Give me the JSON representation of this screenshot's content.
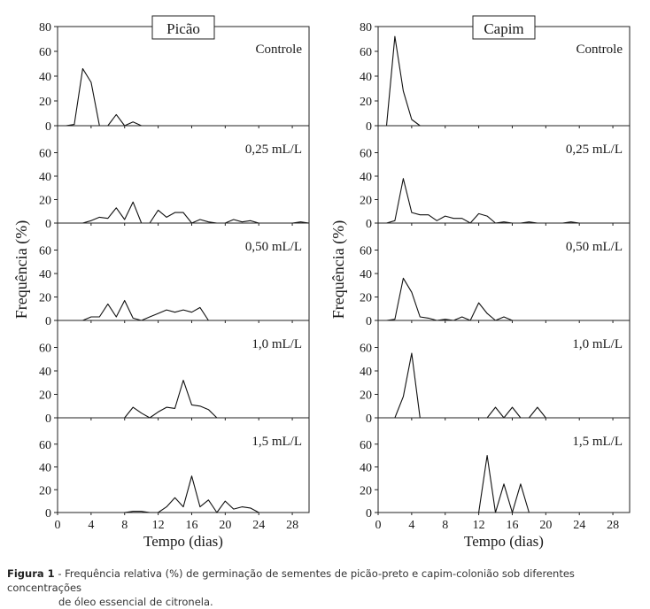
{
  "caption": {
    "label": "Figura 1",
    "line1": "- Frequência relativa (%) de germinação de sementes de picão-preto e capim-colonião sob diferentes concentrações",
    "line2": "de óleo essencial de citronela."
  },
  "chart_data": [
    {
      "type": "line",
      "title": "Picão",
      "xlabel": "Tempo (dias)",
      "ylabel": "Frequência (%)",
      "xlim": [
        0,
        30
      ],
      "xticks": [
        0,
        4,
        8,
        12,
        16,
        20,
        24,
        28
      ],
      "ylim": [
        0,
        80
      ],
      "yticks_top": [
        0,
        20,
        40,
        60,
        80
      ],
      "yticks": [
        0,
        20,
        40,
        60
      ],
      "panels": [
        {
          "label": "Controle",
          "points": [
            [
              1,
              0
            ],
            [
              2,
              1
            ],
            [
              3,
              46
            ],
            [
              4,
              35
            ],
            [
              5,
              0
            ],
            [
              6,
              0
            ],
            [
              7,
              9
            ],
            [
              8,
              0
            ],
            [
              9,
              3
            ],
            [
              10,
              0
            ]
          ]
        },
        {
          "label": "0,25 mL/L",
          "points": [
            [
              1,
              0
            ],
            [
              3,
              0
            ],
            [
              4,
              2
            ],
            [
              5,
              5
            ],
            [
              6,
              4
            ],
            [
              7,
              13
            ],
            [
              8,
              3
            ],
            [
              9,
              18
            ],
            [
              10,
              0
            ],
            [
              11,
              0
            ],
            [
              12,
              11
            ],
            [
              13,
              5
            ],
            [
              14,
              9
            ],
            [
              15,
              9
            ],
            [
              16,
              0
            ],
            [
              17,
              3
            ],
            [
              18,
              1
            ],
            [
              19,
              0
            ],
            [
              20,
              0
            ],
            [
              21,
              3
            ],
            [
              22,
              1
            ],
            [
              23,
              2
            ],
            [
              24,
              0
            ],
            [
              28,
              0
            ],
            [
              29,
              1
            ],
            [
              30,
              0
            ]
          ]
        },
        {
          "label": "0,50 mL/L",
          "points": [
            [
              1,
              0
            ],
            [
              3,
              0
            ],
            [
              4,
              3
            ],
            [
              5,
              3
            ],
            [
              6,
              14
            ],
            [
              7,
              3
            ],
            [
              8,
              17
            ],
            [
              9,
              2
            ],
            [
              10,
              0
            ],
            [
              11,
              3
            ],
            [
              12,
              6
            ],
            [
              13,
              9
            ],
            [
              14,
              7
            ],
            [
              15,
              9
            ],
            [
              16,
              7
            ],
            [
              17,
              11
            ],
            [
              18,
              0
            ]
          ]
        },
        {
          "label": "1,0 mL/L",
          "points": [
            [
              8,
              0
            ],
            [
              9,
              9
            ],
            [
              10,
              4
            ],
            [
              11,
              0
            ],
            [
              12,
              5
            ],
            [
              13,
              9
            ],
            [
              14,
              8
            ],
            [
              15,
              32
            ],
            [
              16,
              11
            ],
            [
              17,
              10
            ],
            [
              18,
              7
            ],
            [
              19,
              0
            ]
          ]
        },
        {
          "label": "1,5 mL/L",
          "points": [
            [
              8,
              0
            ],
            [
              9,
              1
            ],
            [
              10,
              1
            ],
            [
              11,
              0
            ],
            [
              12,
              0
            ],
            [
              13,
              5
            ],
            [
              14,
              13
            ],
            [
              15,
              5
            ],
            [
              16,
              32
            ],
            [
              17,
              5
            ],
            [
              18,
              11
            ],
            [
              19,
              0
            ],
            [
              20,
              10
            ],
            [
              21,
              3
            ],
            [
              22,
              5
            ],
            [
              23,
              4
            ],
            [
              24,
              0
            ]
          ]
        }
      ]
    },
    {
      "type": "line",
      "title": "Capim",
      "xlabel": "Tempo (dias)",
      "ylabel": "Frequência (%)",
      "xlim": [
        0,
        30
      ],
      "xticks": [
        0,
        4,
        8,
        12,
        16,
        20,
        24,
        28
      ],
      "ylim": [
        0,
        80
      ],
      "yticks_top": [
        0,
        20,
        40,
        60,
        80
      ],
      "yticks": [
        0,
        20,
        40,
        60
      ],
      "panels": [
        {
          "label": "Controle",
          "points": [
            [
              1,
              0
            ],
            [
              2,
              72
            ],
            [
              3,
              28
            ],
            [
              4,
              5
            ],
            [
              5,
              0
            ],
            [
              6,
              0
            ]
          ]
        },
        {
          "label": "0,25 mL/L",
          "points": [
            [
              1,
              0
            ],
            [
              2,
              2
            ],
            [
              3,
              38
            ],
            [
              4,
              9
            ],
            [
              5,
              7
            ],
            [
              6,
              7
            ],
            [
              7,
              2
            ],
            [
              8,
              6
            ],
            [
              9,
              4
            ],
            [
              10,
              4
            ],
            [
              11,
              0
            ],
            [
              12,
              8
            ],
            [
              13,
              6
            ],
            [
              14,
              0
            ],
            [
              15,
              1
            ],
            [
              16,
              0
            ],
            [
              17,
              0
            ],
            [
              18,
              1
            ],
            [
              19,
              0
            ],
            [
              22,
              0
            ],
            [
              23,
              1
            ],
            [
              24,
              0
            ]
          ]
        },
        {
          "label": "0,50 mL/L",
          "points": [
            [
              1,
              0
            ],
            [
              2,
              1
            ],
            [
              3,
              36
            ],
            [
              4,
              24
            ],
            [
              5,
              3
            ],
            [
              6,
              2
            ],
            [
              7,
              0
            ],
            [
              8,
              1
            ],
            [
              9,
              0
            ],
            [
              10,
              3
            ],
            [
              11,
              0
            ],
            [
              12,
              15
            ],
            [
              13,
              6
            ],
            [
              14,
              0
            ],
            [
              15,
              3
            ],
            [
              16,
              0
            ]
          ]
        },
        {
          "label": "1,0 mL/L",
          "points": [
            [
              2,
              0
            ],
            [
              3,
              18
            ],
            [
              4,
              55
            ],
            [
              5,
              0
            ],
            [
              13,
              0
            ],
            [
              14,
              9
            ],
            [
              15,
              0
            ],
            [
              16,
              9
            ],
            [
              17,
              0
            ],
            [
              18,
              0
            ],
            [
              19,
              9
            ],
            [
              20,
              0
            ]
          ]
        },
        {
          "label": "1,5 mL/L",
          "points": [
            [
              12,
              0
            ],
            [
              13,
              50
            ],
            [
              14,
              0
            ],
            [
              15,
              25
            ],
            [
              16,
              0
            ],
            [
              17,
              25
            ],
            [
              18,
              0
            ]
          ]
        }
      ]
    }
  ]
}
